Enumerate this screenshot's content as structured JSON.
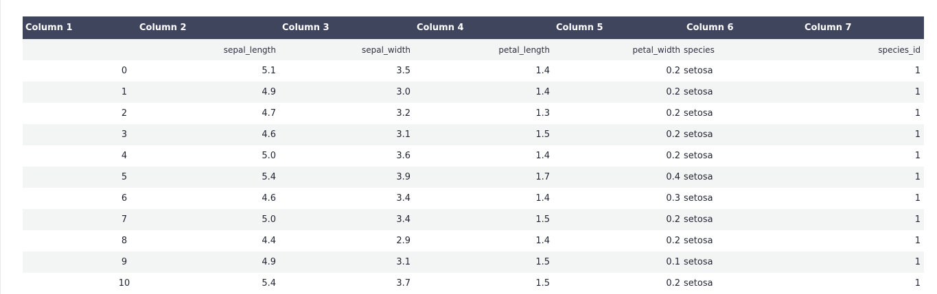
{
  "table": {
    "columns": [
      "Column 1",
      "Column 2",
      "Column 3",
      "Column 4",
      "Column 5",
      "Column 6",
      "Column 7"
    ],
    "subheaders": [
      "",
      "sepal_length",
      "sepal_width",
      "petal_length",
      "petal_width",
      "species",
      "species_id"
    ],
    "rows": [
      [
        "0",
        "5.1",
        "3.5",
        "1.4",
        "0.2",
        "setosa",
        "1"
      ],
      [
        "1",
        "4.9",
        "3.0",
        "1.4",
        "0.2",
        "setosa",
        "1"
      ],
      [
        "2",
        "4.7",
        "3.2",
        "1.3",
        "0.2",
        "setosa",
        "1"
      ],
      [
        "3",
        "4.6",
        "3.1",
        "1.5",
        "0.2",
        "setosa",
        "1"
      ],
      [
        "4",
        "5.0",
        "3.6",
        "1.4",
        "0.2",
        "setosa",
        "1"
      ],
      [
        "5",
        "5.4",
        "3.9",
        "1.7",
        "0.4",
        "setosa",
        "1"
      ],
      [
        "6",
        "4.6",
        "3.4",
        "1.4",
        "0.3",
        "setosa",
        "1"
      ],
      [
        "7",
        "5.0",
        "3.4",
        "1.5",
        "0.2",
        "setosa",
        "1"
      ],
      [
        "8",
        "4.4",
        "2.9",
        "1.4",
        "0.2",
        "setosa",
        "1"
      ],
      [
        "9",
        "4.9",
        "3.1",
        "1.5",
        "0.1",
        "setosa",
        "1"
      ],
      [
        "10",
        "5.4",
        "3.7",
        "1.5",
        "0.2",
        "setosa",
        "1"
      ]
    ]
  },
  "colors": {
    "header_bg": "#3f455c",
    "stripe_bg": "#f3f4f4"
  }
}
